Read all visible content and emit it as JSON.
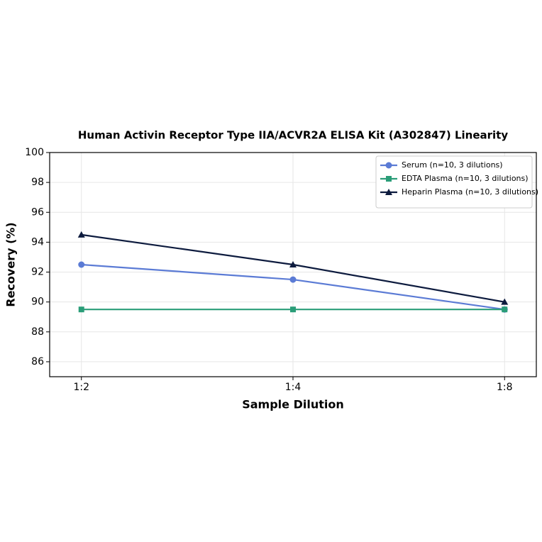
{
  "chart_data": {
    "type": "line",
    "title": "Human Activin Receptor Type IIA/ACVR2A ELISA Kit (A302847) Linearity",
    "x_label": "Sample Dilution",
    "y_label": "Recovery (%)",
    "categories": [
      "1:2",
      "1:4",
      "1:8"
    ],
    "series": [
      {
        "name": "Serum (n=10, 3 dilutions)",
        "color": "#5b7bd5",
        "marker": "circle",
        "values": [
          92.5,
          91.5,
          89.5
        ]
      },
      {
        "name": "EDTA Plasma (n=10, 3 dilutions)",
        "color": "#2a9d78",
        "marker": "square",
        "values": [
          89.5,
          89.5,
          89.5
        ]
      },
      {
        "name": "Heparin Plasma (n=10, 3 dilutions)",
        "color": "#0d1b3e",
        "marker": "triangle",
        "values": [
          94.5,
          92.5,
          90.0
        ]
      }
    ],
    "ylim": [
      85,
      100
    ],
    "yticks": [
      86,
      88,
      90,
      92,
      94,
      96,
      98,
      100
    ],
    "grid": true,
    "legend": "upper right"
  }
}
